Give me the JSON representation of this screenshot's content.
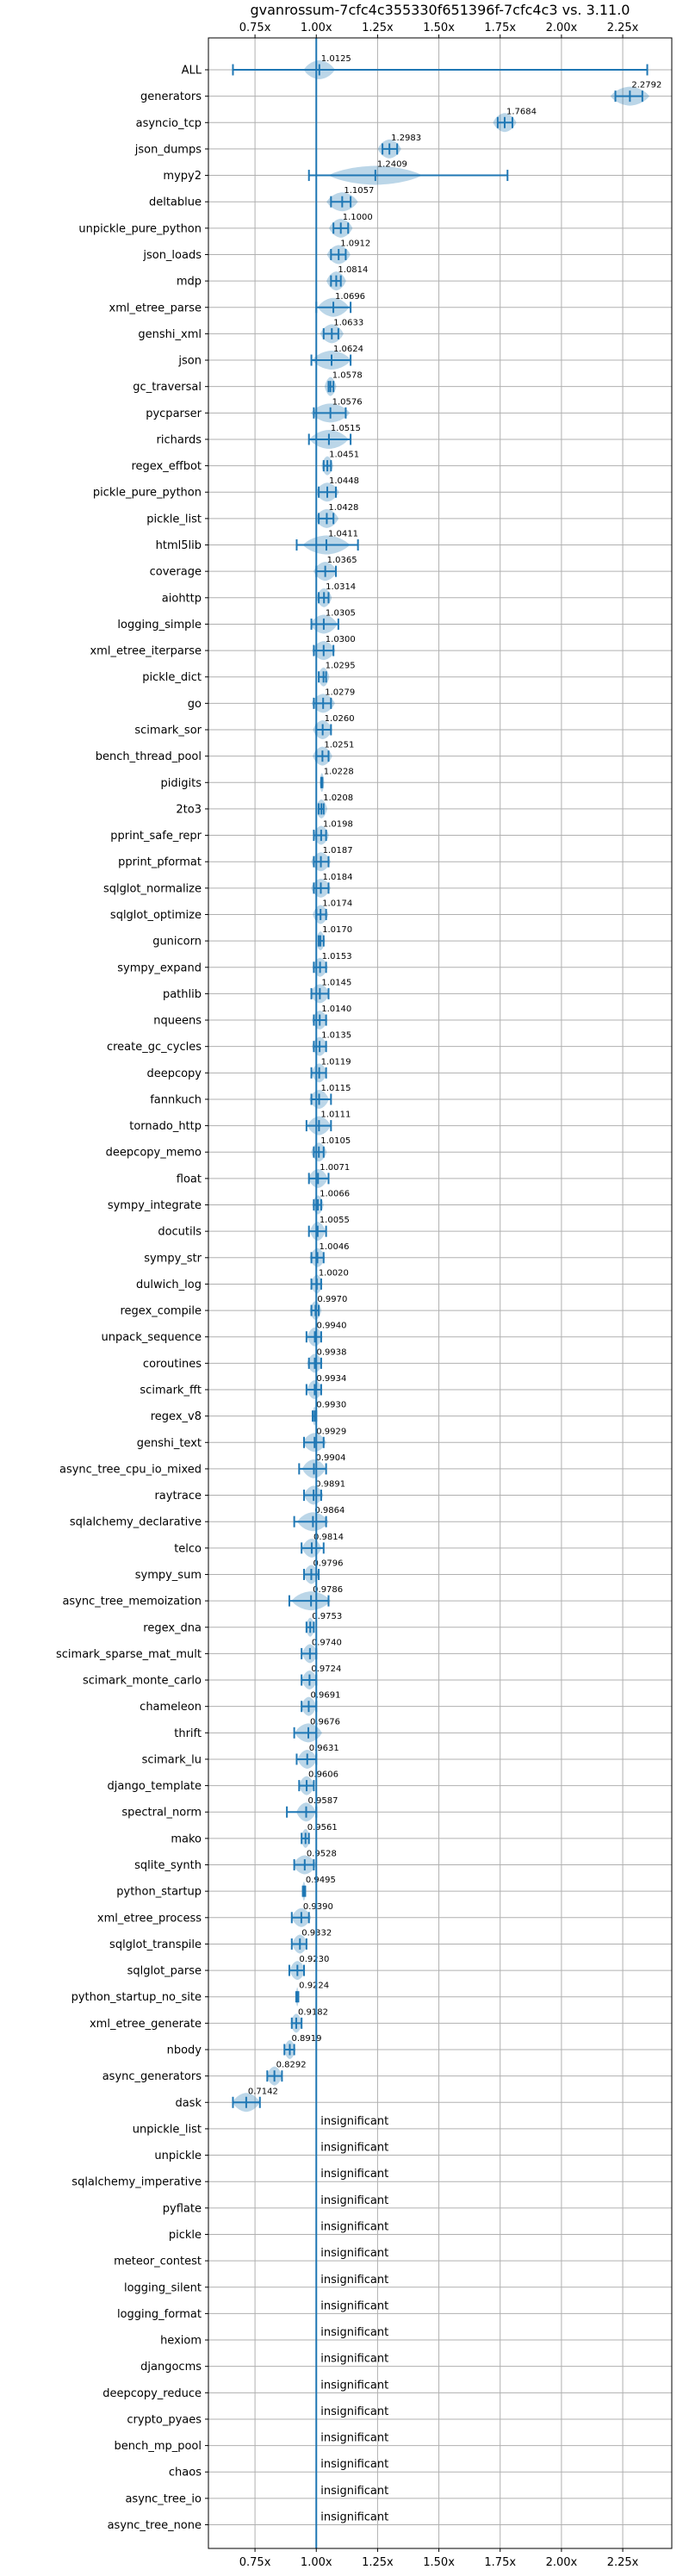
{
  "chart_data": {
    "type": "violin",
    "title": "gvanrossum-7cfc4c355330f651396f-7cfc4c3 vs. 3.11.0",
    "xlim": [
      0.56,
      2.45
    ],
    "xticks": [
      0.75,
      1.0,
      1.25,
      1.5,
      1.75,
      2.0,
      2.25
    ],
    "xtick_labels": [
      "0.75x",
      "1.00x",
      "1.25x",
      "1.50x",
      "1.75x",
      "2.00x",
      "2.25x"
    ],
    "reference_x": 1.0,
    "insignificant_label": "insignificant",
    "benchmarks": [
      {
        "name": "ALL",
        "mean": 1.0125,
        "min": 0.66,
        "max": 2.35,
        "spread": 0.04,
        "label": "1.0125"
      },
      {
        "name": "generators",
        "mean": 2.2792,
        "min": 2.22,
        "max": 2.33,
        "spread": 0.05,
        "label": "2.2792"
      },
      {
        "name": "asyncio_tcp",
        "mean": 1.7684,
        "min": 1.74,
        "max": 1.8,
        "spread": 0.03,
        "label": "1.7684"
      },
      {
        "name": "json_dumps",
        "mean": 1.2983,
        "min": 1.27,
        "max": 1.33,
        "spread": 0.03,
        "label": "1.2983"
      },
      {
        "name": "mypy2",
        "mean": 1.2409,
        "min": 0.97,
        "max": 1.78,
        "spread": 0.12,
        "label": "1.2409"
      },
      {
        "name": "deltablue",
        "mean": 1.1057,
        "min": 1.06,
        "max": 1.14,
        "spread": 0.04,
        "label": "1.1057"
      },
      {
        "name": "unpickle_pure_python",
        "mean": 1.1,
        "min": 1.07,
        "max": 1.13,
        "spread": 0.03,
        "label": "1.1000"
      },
      {
        "name": "json_loads",
        "mean": 1.0912,
        "min": 1.06,
        "max": 1.12,
        "spread": 0.03,
        "label": "1.0912"
      },
      {
        "name": "mdp",
        "mean": 1.0814,
        "min": 1.06,
        "max": 1.1,
        "spread": 0.025,
        "label": "1.0814"
      },
      {
        "name": "xml_etree_parse",
        "mean": 1.0696,
        "min": 1.0,
        "max": 1.14,
        "spread": 0.04,
        "label": "1.0696"
      },
      {
        "name": "genshi_xml",
        "mean": 1.0633,
        "min": 1.03,
        "max": 1.09,
        "spread": 0.03,
        "label": "1.0633"
      },
      {
        "name": "json",
        "mean": 1.0624,
        "min": 0.98,
        "max": 1.14,
        "spread": 0.05,
        "label": "1.0624"
      },
      {
        "name": "gc_traversal",
        "mean": 1.0578,
        "min": 1.05,
        "max": 1.07,
        "spread": 0.015,
        "label": "1.0578"
      },
      {
        "name": "pycparser",
        "mean": 1.0576,
        "min": 0.99,
        "max": 1.12,
        "spread": 0.05,
        "label": "1.0576"
      },
      {
        "name": "richards",
        "mean": 1.0515,
        "min": 0.97,
        "max": 1.14,
        "spread": 0.05,
        "label": "1.0515"
      },
      {
        "name": "regex_effbot",
        "mean": 1.0451,
        "min": 1.03,
        "max": 1.06,
        "spread": 0.015,
        "label": "1.0451"
      },
      {
        "name": "pickle_pure_python",
        "mean": 1.0448,
        "min": 1.01,
        "max": 1.08,
        "spread": 0.03,
        "label": "1.0448"
      },
      {
        "name": "pickle_list",
        "mean": 1.0428,
        "min": 1.01,
        "max": 1.07,
        "spread": 0.03,
        "label": "1.0428"
      },
      {
        "name": "html5lib",
        "mean": 1.0411,
        "min": 0.92,
        "max": 1.17,
        "spread": 0.06,
        "label": "1.0411"
      },
      {
        "name": "coverage",
        "mean": 1.0365,
        "min": 1.0,
        "max": 1.08,
        "spread": 0.03,
        "label": "1.0365"
      },
      {
        "name": "aiohttp",
        "mean": 1.0314,
        "min": 1.01,
        "max": 1.05,
        "spread": 0.02,
        "label": "1.0314"
      },
      {
        "name": "logging_simple",
        "mean": 1.0305,
        "min": 0.98,
        "max": 1.09,
        "spread": 0.035,
        "label": "1.0305"
      },
      {
        "name": "xml_etree_iterparse",
        "mean": 1.03,
        "min": 0.99,
        "max": 1.07,
        "spread": 0.03,
        "label": "1.0300"
      },
      {
        "name": "pickle_dict",
        "mean": 1.0295,
        "min": 1.01,
        "max": 1.04,
        "spread": 0.015,
        "label": "1.0295"
      },
      {
        "name": "go",
        "mean": 1.0279,
        "min": 0.99,
        "max": 1.06,
        "spread": 0.03,
        "label": "1.0279"
      },
      {
        "name": "scimark_sor",
        "mean": 1.026,
        "min": 1.0,
        "max": 1.06,
        "spread": 0.025,
        "label": "1.0260"
      },
      {
        "name": "bench_thread_pool",
        "mean": 1.0251,
        "min": 1.0,
        "max": 1.05,
        "spread": 0.025,
        "label": "1.0251"
      },
      {
        "name": "pidigits",
        "mean": 1.0228,
        "min": 1.02,
        "max": 1.025,
        "spread": 0.006,
        "label": "1.0228"
      },
      {
        "name": "2to3",
        "mean": 1.0208,
        "min": 1.01,
        "max": 1.03,
        "spread": 0.015,
        "label": "1.0208"
      },
      {
        "name": "pprint_safe_repr",
        "mean": 1.0198,
        "min": 0.99,
        "max": 1.04,
        "spread": 0.02,
        "label": "1.0198"
      },
      {
        "name": "pprint_pformat",
        "mean": 1.0187,
        "min": 0.99,
        "max": 1.05,
        "spread": 0.025,
        "label": "1.0187"
      },
      {
        "name": "sqlglot_normalize",
        "mean": 1.0184,
        "min": 0.99,
        "max": 1.05,
        "spread": 0.025,
        "label": "1.0184"
      },
      {
        "name": "sqlglot_optimize",
        "mean": 1.0174,
        "min": 1.0,
        "max": 1.04,
        "spread": 0.02,
        "label": "1.0174"
      },
      {
        "name": "gunicorn",
        "mean": 1.017,
        "min": 1.01,
        "max": 1.03,
        "spread": 0.012,
        "label": "1.0170"
      },
      {
        "name": "sympy_expand",
        "mean": 1.0153,
        "min": 0.99,
        "max": 1.04,
        "spread": 0.02,
        "label": "1.0153"
      },
      {
        "name": "pathlib",
        "mean": 1.0145,
        "min": 0.98,
        "max": 1.05,
        "spread": 0.025,
        "label": "1.0145"
      },
      {
        "name": "nqueens",
        "mean": 1.014,
        "min": 0.99,
        "max": 1.04,
        "spread": 0.02,
        "label": "1.0140"
      },
      {
        "name": "create_gc_cycles",
        "mean": 1.0135,
        "min": 0.99,
        "max": 1.04,
        "spread": 0.02,
        "label": "1.0135"
      },
      {
        "name": "deepcopy",
        "mean": 1.0119,
        "min": 0.98,
        "max": 1.04,
        "spread": 0.02,
        "label": "1.0119"
      },
      {
        "name": "fannkuch",
        "mean": 1.0115,
        "min": 0.98,
        "max": 1.06,
        "spread": 0.025,
        "label": "1.0115"
      },
      {
        "name": "tornado_http",
        "mean": 1.0111,
        "min": 0.96,
        "max": 1.06,
        "spread": 0.03,
        "label": "1.0111"
      },
      {
        "name": "deepcopy_memo",
        "mean": 1.0105,
        "min": 0.99,
        "max": 1.03,
        "spread": 0.02,
        "label": "1.0105"
      },
      {
        "name": "float",
        "mean": 1.0071,
        "min": 0.97,
        "max": 1.05,
        "spread": 0.025,
        "label": "1.0071"
      },
      {
        "name": "sympy_integrate",
        "mean": 1.0066,
        "min": 0.99,
        "max": 1.02,
        "spread": 0.015,
        "label": "1.0066"
      },
      {
        "name": "docutils",
        "mean": 1.0055,
        "min": 0.97,
        "max": 1.04,
        "spread": 0.02,
        "label": "1.0055"
      },
      {
        "name": "sympy_str",
        "mean": 1.0046,
        "min": 0.98,
        "max": 1.03,
        "spread": 0.02,
        "label": "1.0046"
      },
      {
        "name": "dulwich_log",
        "mean": 1.002,
        "min": 0.98,
        "max": 1.02,
        "spread": 0.015,
        "label": "1.0020"
      },
      {
        "name": "regex_compile",
        "mean": 0.997,
        "min": 0.98,
        "max": 1.01,
        "spread": 0.015,
        "label": "0.9970"
      },
      {
        "name": "unpack_sequence",
        "mean": 0.994,
        "min": 0.96,
        "max": 1.02,
        "spread": 0.02,
        "label": "0.9940"
      },
      {
        "name": "coroutines",
        "mean": 0.9938,
        "min": 0.97,
        "max": 1.02,
        "spread": 0.02,
        "label": "0.9938"
      },
      {
        "name": "scimark_fft",
        "mean": 0.9934,
        "min": 0.96,
        "max": 1.02,
        "spread": 0.02,
        "label": "0.9934"
      },
      {
        "name": "regex_v8",
        "mean": 0.993,
        "min": 0.985,
        "max": 1.0,
        "spread": 0.006,
        "label": "0.9930"
      },
      {
        "name": "genshi_text",
        "mean": 0.9929,
        "min": 0.95,
        "max": 1.03,
        "spread": 0.03,
        "label": "0.9929"
      },
      {
        "name": "async_tree_cpu_io_mixed",
        "mean": 0.9904,
        "min": 0.93,
        "max": 1.04,
        "spread": 0.03,
        "label": "0.9904"
      },
      {
        "name": "raytrace",
        "mean": 0.9891,
        "min": 0.95,
        "max": 1.02,
        "spread": 0.025,
        "label": "0.9891"
      },
      {
        "name": "sqlalchemy_declarative",
        "mean": 0.9864,
        "min": 0.91,
        "max": 1.04,
        "spread": 0.04,
        "label": "0.9864"
      },
      {
        "name": "telco",
        "mean": 0.9814,
        "min": 0.94,
        "max": 1.03,
        "spread": 0.025,
        "label": "0.9814"
      },
      {
        "name": "sympy_sum",
        "mean": 0.9796,
        "min": 0.95,
        "max": 1.01,
        "spread": 0.02,
        "label": "0.9796"
      },
      {
        "name": "async_tree_memoization",
        "mean": 0.9786,
        "min": 0.89,
        "max": 1.05,
        "spread": 0.05,
        "label": "0.9786"
      },
      {
        "name": "regex_dna",
        "mean": 0.9753,
        "min": 0.96,
        "max": 0.99,
        "spread": 0.012,
        "label": "0.9753"
      },
      {
        "name": "scimark_sparse_mat_mult",
        "mean": 0.974,
        "min": 0.94,
        "max": 1.0,
        "spread": 0.02,
        "label": "0.9740"
      },
      {
        "name": "scimark_monte_carlo",
        "mean": 0.9724,
        "min": 0.94,
        "max": 1.0,
        "spread": 0.02,
        "label": "0.9724"
      },
      {
        "name": "chameleon",
        "mean": 0.9691,
        "min": 0.94,
        "max": 1.0,
        "spread": 0.02,
        "label": "0.9691"
      },
      {
        "name": "thrift",
        "mean": 0.9676,
        "min": 0.91,
        "max": 1.0,
        "spread": 0.035,
        "label": "0.9676"
      },
      {
        "name": "scimark_lu",
        "mean": 0.9631,
        "min": 0.92,
        "max": 1.0,
        "spread": 0.025,
        "label": "0.9631"
      },
      {
        "name": "django_template",
        "mean": 0.9606,
        "min": 0.93,
        "max": 0.99,
        "spread": 0.02,
        "label": "0.9606"
      },
      {
        "name": "spectral_norm",
        "mean": 0.9587,
        "min": 0.88,
        "max": 1.0,
        "spread": 0.025,
        "label": "0.9587"
      },
      {
        "name": "mako",
        "mean": 0.9561,
        "min": 0.94,
        "max": 0.97,
        "spread": 0.012,
        "label": "0.9561"
      },
      {
        "name": "sqlite_synth",
        "mean": 0.9528,
        "min": 0.91,
        "max": 0.99,
        "spread": 0.03,
        "label": "0.9528"
      },
      {
        "name": "python_startup",
        "mean": 0.9495,
        "min": 0.945,
        "max": 0.955,
        "spread": 0.005,
        "label": "0.9495"
      },
      {
        "name": "xml_etree_process",
        "mean": 0.939,
        "min": 0.9,
        "max": 0.97,
        "spread": 0.025,
        "label": "0.9390"
      },
      {
        "name": "sqlglot_transpile",
        "mean": 0.9332,
        "min": 0.9,
        "max": 0.96,
        "spread": 0.02,
        "label": "0.9332"
      },
      {
        "name": "sqlglot_parse",
        "mean": 0.923,
        "min": 0.89,
        "max": 0.95,
        "spread": 0.02,
        "label": "0.9230"
      },
      {
        "name": "python_startup_no_site",
        "mean": 0.9224,
        "min": 0.918,
        "max": 0.927,
        "spread": 0.004,
        "label": "0.9224"
      },
      {
        "name": "xml_etree_generate",
        "mean": 0.9182,
        "min": 0.9,
        "max": 0.94,
        "spread": 0.015,
        "label": "0.9182"
      },
      {
        "name": "nbody",
        "mean": 0.8919,
        "min": 0.87,
        "max": 0.91,
        "spread": 0.015,
        "label": "0.8919"
      },
      {
        "name": "async_generators",
        "mean": 0.8292,
        "min": 0.8,
        "max": 0.86,
        "spread": 0.02,
        "label": "0.8292"
      },
      {
        "name": "dask",
        "mean": 0.7142,
        "min": 0.66,
        "max": 0.77,
        "spread": 0.035,
        "label": "0.7142"
      }
    ],
    "insignificant": [
      "unpickle_list",
      "unpickle",
      "sqlalchemy_imperative",
      "pyflate",
      "pickle",
      "meteor_contest",
      "logging_silent",
      "logging_format",
      "hexiom",
      "djangocms",
      "deepcopy_reduce",
      "crypto_pyaes",
      "bench_mp_pool",
      "chaos",
      "async_tree_io",
      "async_tree_none"
    ]
  },
  "colors": {
    "primary": "#1f77b4",
    "violin_fill": "#1f77b4",
    "grid": "#b0b0b0"
  }
}
